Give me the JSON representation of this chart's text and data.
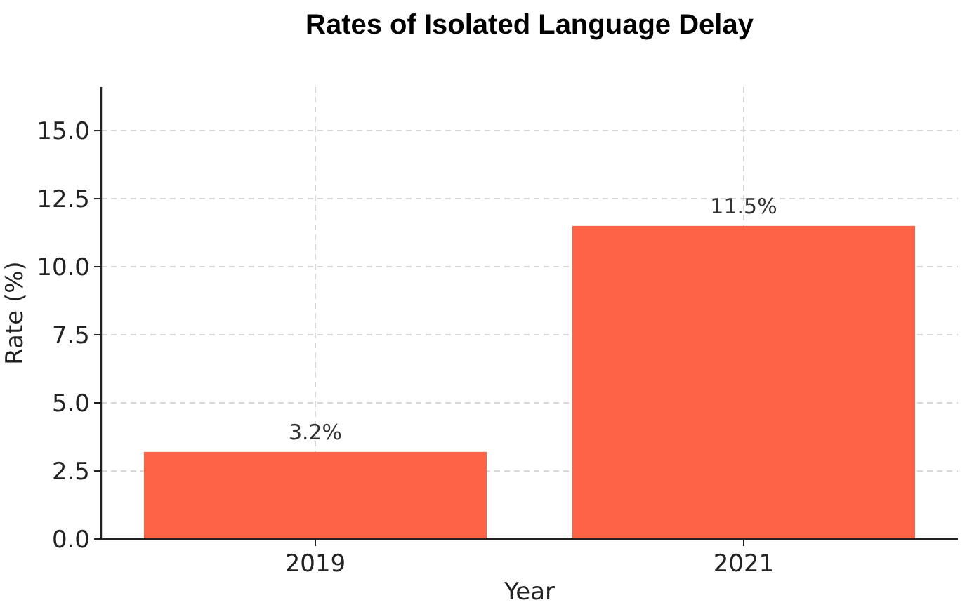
{
  "chart_data": {
    "type": "bar",
    "title": "Rates of Isolated Language Delay",
    "xlabel": "Year",
    "ylabel": "Rate (%)",
    "categories": [
      "2019",
      "2021"
    ],
    "values": [
      3.2,
      11.5
    ],
    "value_labels": [
      "3.2%",
      "11.5%"
    ],
    "color": "#ff6347",
    "ylim": [
      0,
      16.6
    ],
    "yticks": [
      {
        "value": 0,
        "label": "0.0"
      },
      {
        "value": 2.5,
        "label": "2.5"
      },
      {
        "value": 5,
        "label": "5.0"
      },
      {
        "value": 7.5,
        "label": "7.5"
      },
      {
        "value": 10,
        "label": "10.0"
      },
      {
        "value": 12.5,
        "label": "12.5"
      },
      {
        "value": 15,
        "label": "15.0"
      }
    ],
    "grid": true
  }
}
